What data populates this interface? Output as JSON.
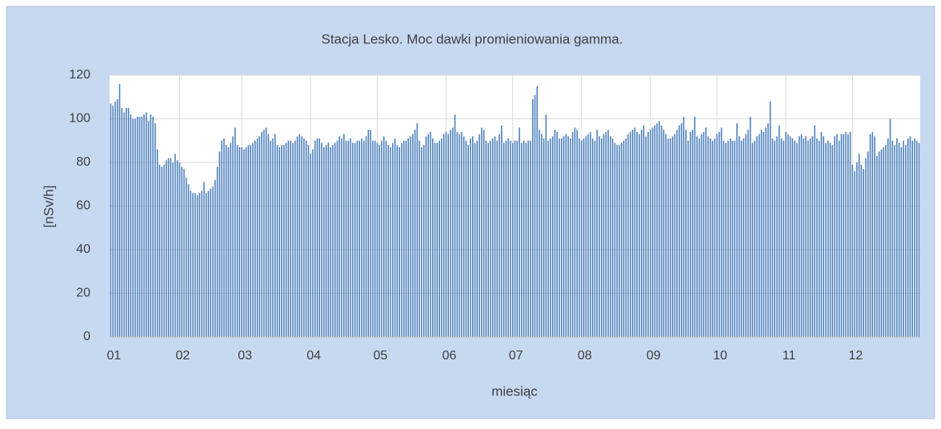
{
  "chart_data": {
    "type": "bar",
    "title": "Stacja Lesko. Moc dawki promieniowania gamma.",
    "x_label": "miesiąc",
    "y_label": "[nSv/h]",
    "color": "#4a7ebb",
    "grid": true,
    "ylim": [
      0,
      120
    ],
    "yticks": [
      0,
      20,
      40,
      60,
      80,
      100,
      120
    ],
    "categories": [
      "01",
      null,
      null,
      null,
      null,
      null,
      null,
      null,
      null,
      null,
      null,
      null,
      null,
      null,
      null,
      null,
      null,
      null,
      null,
      null,
      null,
      null,
      null,
      null,
      null,
      null,
      null,
      null,
      null,
      null,
      null,
      "02",
      null,
      null,
      null,
      null,
      null,
      null,
      null,
      null,
      null,
      null,
      null,
      null,
      null,
      null,
      null,
      null,
      null,
      null,
      null,
      null,
      null,
      null,
      null,
      null,
      null,
      null,
      null,
      "03",
      null,
      null,
      null,
      null,
      null,
      null,
      null,
      null,
      null,
      null,
      null,
      null,
      null,
      null,
      null,
      null,
      null,
      null,
      null,
      null,
      null,
      null,
      null,
      null,
      null,
      null,
      null,
      null,
      null,
      null,
      "04",
      null,
      null,
      null,
      null,
      null,
      null,
      null,
      null,
      null,
      null,
      null,
      null,
      null,
      null,
      null,
      null,
      null,
      null,
      null,
      null,
      null,
      null,
      null,
      null,
      null,
      null,
      null,
      null,
      null,
      "05",
      null,
      null,
      null,
      null,
      null,
      null,
      null,
      null,
      null,
      null,
      null,
      null,
      null,
      null,
      null,
      null,
      null,
      null,
      null,
      null,
      null,
      null,
      null,
      null,
      null,
      null,
      null,
      null,
      null,
      null,
      "06",
      null,
      null,
      null,
      null,
      null,
      null,
      null,
      null,
      null,
      null,
      null,
      null,
      null,
      null,
      null,
      null,
      null,
      null,
      null,
      null,
      null,
      null,
      null,
      null,
      null,
      null,
      null,
      null,
      null,
      "07",
      null,
      null,
      null,
      null,
      null,
      null,
      null,
      null,
      null,
      null,
      null,
      null,
      null,
      null,
      null,
      null,
      null,
      null,
      null,
      null,
      null,
      null,
      null,
      null,
      null,
      null,
      null,
      null,
      null,
      null,
      "08",
      null,
      null,
      null,
      null,
      null,
      null,
      null,
      null,
      null,
      null,
      null,
      null,
      null,
      null,
      null,
      null,
      null,
      null,
      null,
      null,
      null,
      null,
      null,
      null,
      null,
      null,
      null,
      null,
      null,
      null,
      "09",
      null,
      null,
      null,
      null,
      null,
      null,
      null,
      null,
      null,
      null,
      null,
      null,
      null,
      null,
      null,
      null,
      null,
      null,
      null,
      null,
      null,
      null,
      null,
      null,
      null,
      null,
      null,
      null,
      null,
      "10",
      null,
      null,
      null,
      null,
      null,
      null,
      null,
      null,
      null,
      null,
      null,
      null,
      null,
      null,
      null,
      null,
      null,
      null,
      null,
      null,
      null,
      null,
      null,
      null,
      null,
      null,
      null,
      null,
      null,
      null,
      "11",
      null,
      null,
      null,
      null,
      null,
      null,
      null,
      null,
      null,
      null,
      null,
      null,
      null,
      null,
      null,
      null,
      null,
      null,
      null,
      null,
      null,
      null,
      null,
      null,
      null,
      null,
      null,
      null,
      null,
      "12",
      null,
      null,
      null,
      null,
      null,
      null,
      null,
      null,
      null,
      null,
      null,
      null,
      null,
      null,
      null,
      null,
      null,
      null,
      null,
      null,
      null,
      null,
      null,
      null,
      null,
      null,
      null,
      null,
      null,
      null
    ],
    "values": [
      107,
      106,
      108,
      109,
      116,
      105,
      103,
      105,
      105,
      102,
      100,
      100,
      101,
      101,
      101,
      102,
      103,
      99,
      102,
      101,
      98,
      86,
      79,
      78,
      79,
      81,
      82,
      82,
      80,
      84,
      81,
      80,
      78,
      77,
      73,
      70,
      67,
      66,
      66,
      65,
      66,
      67,
      71,
      66,
      67,
      68,
      69,
      72,
      78,
      85,
      90,
      91,
      88,
      87,
      89,
      92,
      96,
      88,
      87,
      87,
      86,
      87,
      88,
      88,
      89,
      90,
      91,
      92,
      94,
      95,
      96,
      93,
      90,
      91,
      93,
      88,
      87,
      88,
      88,
      89,
      90,
      90,
      89,
      90,
      92,
      93,
      92,
      91,
      90,
      88,
      84,
      86,
      90,
      91,
      91,
      89,
      87,
      88,
      89,
      87,
      88,
      89,
      90,
      92,
      91,
      93,
      90,
      90,
      91,
      89,
      89,
      90,
      90,
      91,
      90,
      92,
      95,
      95,
      90,
      90,
      89,
      88,
      90,
      92,
      90,
      88,
      87,
      89,
      91,
      88,
      87,
      89,
      90,
      90,
      91,
      92,
      93,
      95,
      98,
      90,
      87,
      88,
      92,
      93,
      94,
      91,
      89,
      89,
      90,
      91,
      93,
      94,
      93,
      95,
      96,
      102,
      94,
      93,
      94,
      92,
      90,
      88,
      91,
      92,
      89,
      90,
      93,
      96,
      95,
      90,
      89,
      90,
      91,
      92,
      90,
      93,
      97,
      89,
      90,
      91,
      90,
      89,
      90,
      90,
      96,
      89,
      90,
      89,
      90,
      90,
      109,
      111,
      115,
      95,
      93,
      91,
      102,
      90,
      91,
      92,
      95,
      94,
      91,
      91,
      92,
      93,
      92,
      91,
      94,
      96,
      95,
      91,
      90,
      91,
      92,
      93,
      94,
      91,
      90,
      95,
      92,
      91,
      93,
      94,
      95,
      92,
      91,
      89,
      88,
      88,
      89,
      90,
      91,
      93,
      94,
      95,
      96,
      94,
      93,
      95,
      97,
      92,
      94,
      95,
      96,
      97,
      98,
      99,
      97,
      95,
      93,
      91,
      91,
      92,
      93,
      95,
      97,
      98,
      101,
      95,
      90,
      94,
      95,
      101,
      92,
      91,
      93,
      94,
      96,
      92,
      91,
      90,
      91,
      93,
      94,
      96,
      90,
      89,
      90,
      91,
      90,
      90,
      98,
      92,
      90,
      91,
      93,
      95,
      101,
      89,
      90,
      92,
      93,
      95,
      94,
      96,
      98,
      108,
      91,
      90,
      92,
      97,
      91,
      90,
      94,
      93,
      92,
      91,
      90,
      89,
      92,
      93,
      91,
      92,
      90,
      91,
      92,
      97,
      91,
      90,
      94,
      92,
      89,
      90,
      89,
      88,
      92,
      93,
      90,
      93,
      93,
      94,
      93,
      94,
      79,
      76,
      80,
      84,
      79,
      77,
      82,
      85,
      93,
      94,
      92,
      83,
      85,
      86,
      87,
      88,
      91,
      100,
      90,
      88,
      91,
      89,
      87,
      90,
      88,
      91,
      92,
      90,
      91,
      90,
      89
    ]
  }
}
